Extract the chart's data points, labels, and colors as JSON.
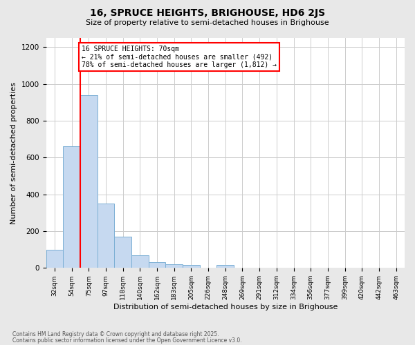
{
  "title1": "16, SPRUCE HEIGHTS, BRIGHOUSE, HD6 2JS",
  "title2": "Size of property relative to semi-detached houses in Brighouse",
  "xlabel": "Distribution of semi-detached houses by size in Brighouse",
  "ylabel": "Number of semi-detached properties",
  "bin_labels": [
    "32sqm",
    "54sqm",
    "75sqm",
    "97sqm",
    "118sqm",
    "140sqm",
    "162sqm",
    "183sqm",
    "205sqm",
    "226sqm",
    "248sqm",
    "269sqm",
    "291sqm",
    "312sqm",
    "334sqm",
    "356sqm",
    "377sqm",
    "399sqm",
    "420sqm",
    "442sqm",
    "463sqm"
  ],
  "bar_values": [
    100,
    660,
    940,
    350,
    170,
    70,
    30,
    20,
    15,
    0,
    15,
    0,
    0,
    0,
    0,
    0,
    0,
    0,
    0,
    0,
    0
  ],
  "bar_color": "#c6d9f0",
  "bar_edge_color": "#7bafd4",
  "vline_color": "red",
  "annotation_text": "16 SPRUCE HEIGHTS: 70sqm\n← 21% of semi-detached houses are smaller (492)\n78% of semi-detached houses are larger (1,812) →",
  "annotation_box_color": "white",
  "annotation_box_edge": "red",
  "ylim": [
    0,
    1250
  ],
  "yticks": [
    0,
    200,
    400,
    600,
    800,
    1000,
    1200
  ],
  "footer1": "Contains HM Land Registry data © Crown copyright and database right 2025.",
  "footer2": "Contains public sector information licensed under the Open Government Licence v3.0.",
  "bg_color": "#e8e8e8",
  "plot_bg_color": "#ffffff",
  "grid_color": "#cccccc"
}
